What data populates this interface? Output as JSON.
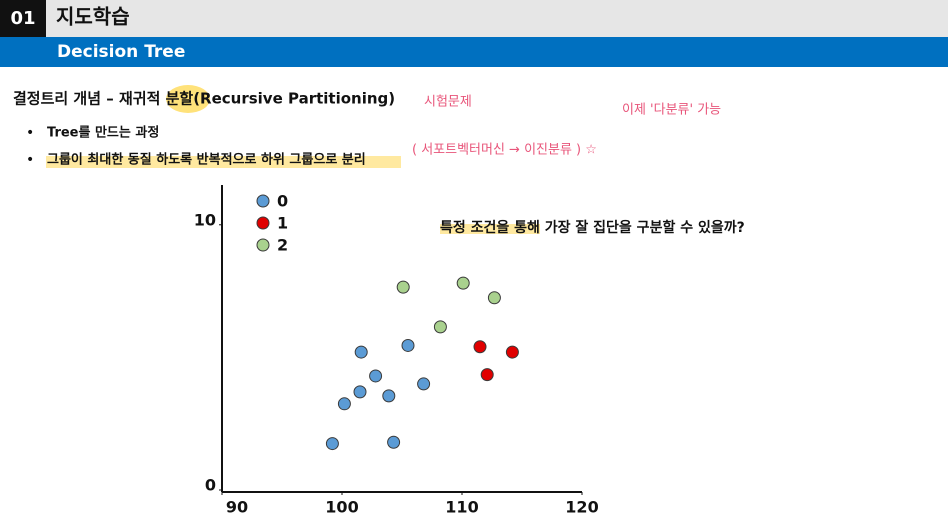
{
  "header": {
    "number": "01",
    "title": "지도학습",
    "subtitle": "Decision Tree"
  },
  "section_title": "결정트리 개념 – 재귀적 분할(Recursive Partitioning)",
  "bullets": [
    "Tree를 만드는 과정",
    "그룹이 최대한 동질 하도록 반복적으로 하위 그룹으로 분리"
  ],
  "handwritten_notes": [
    "시험문제",
    "이제 '다분류' 가능",
    "( 서포트벡터머신 → 이진분류 ) ☆"
  ],
  "chart_data": {
    "type": "scatter",
    "annotation": "특정 조건을 통해 가장 잘 집단을 구분할 수 있을까?",
    "xlim": [
      90,
      120
    ],
    "xticks": [
      90,
      100,
      110,
      120
    ],
    "ylim": [
      0,
      11.5
    ],
    "yticks": [
      0,
      10
    ],
    "legend": "upper left",
    "series": [
      {
        "name": "0",
        "color": "#5b9bd5",
        "x": [
          99.2,
          100.2,
          101.5,
          101.6,
          102.8,
          103.9,
          105.5,
          106.8,
          104.3
        ],
        "y": [
          1.75,
          3.25,
          3.7,
          5.2,
          4.3,
          3.55,
          5.45,
          4.0,
          1.8
        ]
      },
      {
        "name": "1",
        "color": "#e00000",
        "x": [
          111.5,
          114.2,
          112.1
        ],
        "y": [
          5.4,
          5.2,
          4.35
        ]
      },
      {
        "name": "2",
        "color": "#a9d18e",
        "x": [
          105.1,
          110.1,
          112.7,
          108.2
        ],
        "y": [
          7.65,
          7.8,
          7.25,
          6.15
        ]
      }
    ]
  }
}
